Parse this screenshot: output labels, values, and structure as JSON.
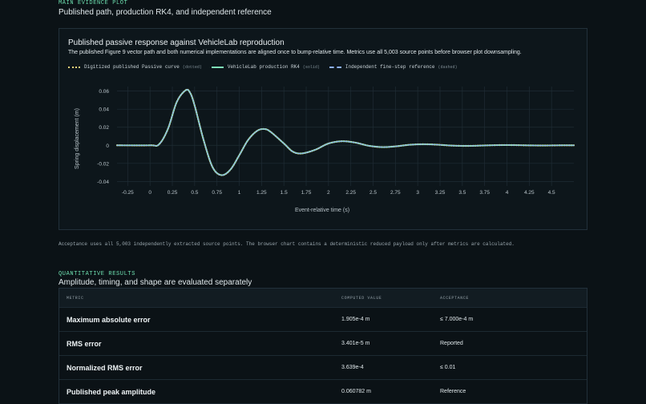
{
  "main_section": {
    "eyebrow": "MAIN EVIDENCE PLOT",
    "title": "Published path, production RK4, and independent reference"
  },
  "plot": {
    "title": "Published passive response against VehicleLab reproduction",
    "subtitle": "The published Figure 9 vector path and both numerical implementations are aligned once to bump-relative time. Metrics use all 5,003 source points before browser plot downsampling.",
    "legend": [
      {
        "label": "Digitized published Passive curve",
        "note": "(dotted)",
        "color": "#e6d27a",
        "style": "dotted"
      },
      {
        "label": "VehicleLab production RK4",
        "note": "(solid)",
        "color": "#7fe0b8",
        "style": "solid"
      },
      {
        "label": "Independent fine-step reference",
        "note": "(dashed)",
        "color": "#8fb2ff",
        "style": "dashed"
      }
    ]
  },
  "chart_data": {
    "type": "line",
    "xlabel": "Event-relative time (s)",
    "ylabel": "Spring displacement (m)",
    "xlim": [
      -0.37,
      4.75
    ],
    "ylim": [
      -0.045,
      0.065
    ],
    "xticks": [
      "-0.25",
      "0",
      "0.25",
      "0.5",
      "0.75",
      "1",
      "1.25",
      "1.5",
      "1.75",
      "2",
      "2.25",
      "2.5",
      "2.75",
      "3",
      "3.25",
      "3.5",
      "3.75",
      "4",
      "4.25",
      "4.5"
    ],
    "yticks": [
      "0.06",
      "0.04",
      "0.02",
      "0",
      "-0.02",
      "-0.04"
    ],
    "grid": true,
    "series": [
      {
        "name": "Digitized published Passive curve",
        "x": [
          -0.37,
          0.0,
          0.1,
          0.2,
          0.3,
          0.4,
          0.45,
          0.5,
          0.6,
          0.7,
          0.8,
          0.9,
          1.0,
          1.1,
          1.2,
          1.28,
          1.35,
          1.5,
          1.6,
          1.7,
          1.85,
          2.0,
          2.15,
          2.3,
          2.45,
          2.6,
          2.75,
          2.9,
          3.05,
          3.2,
          3.4,
          3.6,
          3.8,
          4.0,
          4.2,
          4.4,
          4.6,
          4.75
        ],
        "y": [
          0.0,
          0.0,
          0.001,
          0.018,
          0.048,
          0.061,
          0.058,
          0.044,
          0.006,
          -0.024,
          -0.033,
          -0.027,
          -0.011,
          0.006,
          0.016,
          0.018,
          0.015,
          0.002,
          -0.007,
          -0.009,
          -0.005,
          0.002,
          0.0045,
          0.003,
          -0.0005,
          -0.002,
          -0.0012,
          0.0005,
          0.0012,
          0.0008,
          -0.0004,
          -0.0006,
          0.0,
          0.0003,
          0.0,
          -0.0002,
          0.0,
          0.0
        ]
      },
      {
        "name": "VehicleLab production RK4",
        "x": [
          -0.37,
          0.0,
          0.1,
          0.2,
          0.3,
          0.4,
          0.45,
          0.5,
          0.6,
          0.7,
          0.8,
          0.9,
          1.0,
          1.1,
          1.2,
          1.28,
          1.35,
          1.5,
          1.6,
          1.7,
          1.85,
          2.0,
          2.15,
          2.3,
          2.45,
          2.6,
          2.75,
          2.9,
          3.05,
          3.2,
          3.4,
          3.6,
          3.8,
          4.0,
          4.2,
          4.4,
          4.6,
          4.75
        ],
        "y": [
          0.0,
          0.0,
          0.001,
          0.018,
          0.048,
          0.061,
          0.058,
          0.044,
          0.006,
          -0.024,
          -0.033,
          -0.027,
          -0.011,
          0.006,
          0.016,
          0.018,
          0.015,
          0.002,
          -0.007,
          -0.009,
          -0.005,
          0.002,
          0.0045,
          0.003,
          -0.0005,
          -0.002,
          -0.0012,
          0.0005,
          0.0012,
          0.0008,
          -0.0004,
          -0.0006,
          0.0,
          0.0003,
          0.0,
          -0.0002,
          0.0,
          0.0
        ]
      },
      {
        "name": "Independent fine-step reference",
        "x": [
          -0.37,
          0.0,
          0.1,
          0.2,
          0.3,
          0.4,
          0.45,
          0.5,
          0.6,
          0.7,
          0.8,
          0.9,
          1.0,
          1.1,
          1.2,
          1.28,
          1.35,
          1.5,
          1.6,
          1.7,
          1.85,
          2.0,
          2.15,
          2.3,
          2.45,
          2.6,
          2.75,
          2.9,
          3.05,
          3.2,
          3.4,
          3.6,
          3.8,
          4.0,
          4.2,
          4.4,
          4.6,
          4.75
        ],
        "y": [
          0.0,
          0.0,
          0.001,
          0.018,
          0.048,
          0.061,
          0.058,
          0.044,
          0.006,
          -0.024,
          -0.033,
          -0.027,
          -0.011,
          0.006,
          0.016,
          0.018,
          0.015,
          0.002,
          -0.007,
          -0.009,
          -0.005,
          0.002,
          0.0045,
          0.003,
          -0.0005,
          -0.002,
          -0.0012,
          0.0005,
          0.0012,
          0.0008,
          -0.0004,
          -0.0006,
          0.0,
          0.0003,
          0.0,
          -0.0002,
          0.0,
          0.0
        ]
      }
    ]
  },
  "acceptance_note": "Acceptance uses all 5,003 independently extracted source points. The browser chart contains a deterministic reduced payload only after metrics are calculated.",
  "quant_section": {
    "eyebrow": "QUANTITATIVE RESULTS",
    "title": "Amplitude, timing, and shape are evaluated separately"
  },
  "table": {
    "headers": [
      "METRIC",
      "COMPUTED VALUE",
      "ACCEPTANCE"
    ],
    "rows": [
      [
        "Maximum absolute error",
        "1.905e-4 m",
        "≤ 7.000e-4 m"
      ],
      [
        "RMS error",
        "3.401e-5 m",
        "Reported"
      ],
      [
        "Normalized RMS error",
        "3.639e-4",
        "≤ 0.01"
      ],
      [
        "Published peak amplitude",
        "0.060782 m",
        "Reference"
      ]
    ]
  },
  "colors": {
    "accent": "#6ee0b0",
    "grid": "#1f2c34",
    "axis_text": "#b9c4ca"
  }
}
